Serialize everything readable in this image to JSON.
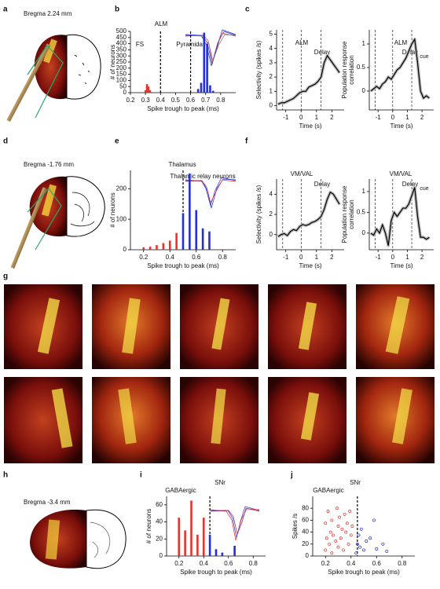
{
  "panels": [
    "a",
    "b",
    "c",
    "d",
    "e",
    "f",
    "g",
    "h",
    "i",
    "j"
  ],
  "captions": [
    "Bregma 2.24 mm",
    "Bregma -1.76 mm",
    "Bregma -3.4 mm"
  ],
  "chart_data": [
    {
      "type": "bar",
      "title": "ALM",
      "annotations": [
        "FS",
        "Pyramidal"
      ],
      "xlabel": "Spike trough to peak (ms)",
      "ylabel": "# of neurons",
      "xlim": [
        0.2,
        0.9
      ],
      "xticks": [
        0.2,
        0.3,
        0.4,
        0.5,
        0.6,
        0.7,
        0.8
      ],
      "ylim": [
        0,
        500
      ],
      "yticks": [
        0,
        50,
        100,
        150,
        200,
        250,
        300,
        350,
        400,
        450,
        500
      ],
      "vlines": [
        0.4,
        0.6
      ],
      "series": [
        {
          "color": "#e8322b",
          "x": [
            0.3,
            0.31,
            0.32,
            0.33,
            0.34
          ],
          "values": [
            20,
            70,
            50,
            20,
            5
          ]
        },
        {
          "color": "#2330d8",
          "x": [
            0.65,
            0.67,
            0.69,
            0.71,
            0.73,
            0.75
          ],
          "values": [
            30,
            80,
            490,
            400,
            60,
            15
          ]
        }
      ]
    },
    {
      "type": "line",
      "title": "ALM",
      "annotations": [
        "Delay"
      ],
      "xlabel": "Time (s)",
      "ylabel": [
        "Selectivity (spikes /s)"
      ],
      "xlim": [
        -1.6,
        2.8
      ],
      "xticks": [
        -1,
        0,
        1,
        2
      ],
      "ylim": [
        -0.3,
        5.3
      ],
      "yticks": [
        0,
        1,
        2,
        3,
        4,
        5
      ],
      "vlines": [
        -1.2,
        0,
        1.3
      ],
      "x": [
        -1.5,
        -1.3,
        -1.1,
        -0.9,
        -0.7,
        -0.5,
        -0.3,
        -0.1,
        0.1,
        0.3,
        0.5,
        0.7,
        0.9,
        1.1,
        1.3,
        1.5,
        1.7,
        1.9,
        2.1,
        2.3,
        2.5
      ],
      "series": [
        {
          "color": "#000000",
          "values": [
            0.1,
            0.2,
            0.2,
            0.3,
            0.4,
            0.5,
            0.7,
            0.9,
            1.0,
            1.0,
            1.3,
            1.4,
            1.5,
            1.7,
            2.0,
            3.0,
            3.5,
            3.2,
            2.9,
            2.6,
            2.3
          ]
        }
      ]
    },
    {
      "type": "line",
      "title": "ALM",
      "annotations": [
        "Delay",
        "cue"
      ],
      "xlabel": "Time (s)",
      "ylabel": [
        "Population response",
        "correlation"
      ],
      "xlim": [
        -1.6,
        2.8
      ],
      "xticks": [
        -1,
        0,
        1,
        2
      ],
      "ylim": [
        -0.4,
        1.3
      ],
      "yticks": [
        0,
        0.5,
        1
      ],
      "vlines": [
        -1.2,
        0,
        1.3
      ],
      "x": [
        -1.5,
        -1.3,
        -1.1,
        -0.9,
        -0.7,
        -0.5,
        -0.3,
        -0.1,
        0.1,
        0.3,
        0.5,
        0.7,
        0.9,
        1.1,
        1.3,
        1.5,
        1.7,
        1.9,
        2.1,
        2.3,
        2.5
      ],
      "series": [
        {
          "color": "#000000",
          "values": [
            0.0,
            0.05,
            0.1,
            0.05,
            0.15,
            0.2,
            0.3,
            0.25,
            0.35,
            0.45,
            0.5,
            0.6,
            0.7,
            0.85,
            1.0,
            1.1,
            0.6,
            0.0,
            -0.15,
            -0.1,
            -0.15
          ]
        }
      ]
    },
    {
      "type": "bar",
      "title": "Thalamus",
      "annotations": [
        "Thalamic relay neurons"
      ],
      "xlabel": "Spike trough to peak (ms)",
      "ylabel": [
        "# of neurons"
      ],
      "xlim": [
        0.1,
        0.9
      ],
      "xticks": [
        0.2,
        0.4,
        0.6,
        0.8
      ],
      "ylim": [
        0,
        260
      ],
      "yticks": [
        0,
        100,
        200
      ],
      "vlines": [
        0.5
      ],
      "series": [
        {
          "color": "#e8322b",
          "x": [
            0.2,
            0.25,
            0.3,
            0.35,
            0.4,
            0.45
          ],
          "values": [
            8,
            10,
            15,
            22,
            30,
            55
          ]
        },
        {
          "color": "#2330d8",
          "x": [
            0.5,
            0.55,
            0.6,
            0.65,
            0.7
          ],
          "values": [
            120,
            250,
            130,
            70,
            60
          ]
        }
      ]
    },
    {
      "type": "line",
      "title": "VM/VAL",
      "annotations": [
        "Delay"
      ],
      "xlabel": "Time (s)",
      "ylabel": [
        "Selectivity (spikes /s)"
      ],
      "xlim": [
        -1.6,
        2.8
      ],
      "xticks": [
        -1,
        0,
        1,
        2
      ],
      "ylim": [
        -1.5,
        5.5
      ],
      "yticks": [
        0,
        2,
        4
      ],
      "vlines": [
        -1.2,
        0,
        1.3
      ],
      "x": [
        -1.5,
        -1.3,
        -1.1,
        -0.9,
        -0.7,
        -0.5,
        -0.3,
        -0.1,
        0.1,
        0.3,
        0.5,
        0.7,
        0.9,
        1.1,
        1.3,
        1.5,
        1.7,
        1.9,
        2.1,
        2.3,
        2.5
      ],
      "series": [
        {
          "color": "#000000",
          "values": [
            -0.2,
            0.0,
            0.1,
            -0.1,
            0.3,
            0.5,
            0.4,
            0.8,
            1.0,
            0.9,
            1.0,
            1.2,
            1.3,
            1.5,
            1.8,
            2.5,
            3.5,
            4.2,
            4.0,
            3.5,
            3.0
          ]
        }
      ]
    },
    {
      "type": "line",
      "title": "VM/VAL",
      "annotations": [
        "Delay",
        "cue"
      ],
      "xlabel": "Time (s)",
      "ylabel": [
        "Population response",
        "correlation"
      ],
      "xlim": [
        -1.6,
        2.8
      ],
      "xticks": [
        -1,
        0,
        1,
        2
      ],
      "ylim": [
        -0.4,
        1.3
      ],
      "yticks": [
        0,
        0.5,
        1
      ],
      "vlines": [
        -1.2,
        0,
        1.3
      ],
      "x": [
        -1.5,
        -1.3,
        -1.1,
        -0.9,
        -0.7,
        -0.5,
        -0.3,
        -0.1,
        0.1,
        0.3,
        0.5,
        0.7,
        0.9,
        1.1,
        1.3,
        1.5,
        1.7,
        1.9,
        2.1,
        2.3,
        2.5
      ],
      "series": [
        {
          "color": "#000000",
          "values": [
            0.0,
            -0.05,
            0.1,
            0.0,
            0.2,
            0.0,
            -0.3,
            0.3,
            0.5,
            0.4,
            0.5,
            0.6,
            0.6,
            0.7,
            0.9,
            1.1,
            0.4,
            -0.1,
            -0.1,
            -0.15,
            -0.1
          ]
        }
      ]
    },
    {
      "type": "bar",
      "title": "SNr",
      "annotations": [
        "GABAergic"
      ],
      "xlabel": "Spike trough to peak (ms)",
      "ylabel": [
        "# of neurons"
      ],
      "xlim": [
        0.1,
        0.9
      ],
      "xticks": [
        0.2,
        0.4,
        0.6,
        0.8
      ],
      "ylim": [
        0,
        70
      ],
      "yticks": [
        0,
        20,
        40,
        60
      ],
      "vlines": [
        0.45
      ],
      "series": [
        {
          "color": "#e8322b",
          "x": [
            0.2,
            0.25,
            0.3,
            0.35,
            0.4
          ],
          "values": [
            45,
            30,
            65,
            25,
            45
          ]
        },
        {
          "color": "#2330d8",
          "x": [
            0.45,
            0.5,
            0.55,
            0.65
          ],
          "values": [
            25,
            8,
            4,
            12
          ]
        }
      ]
    },
    {
      "type": "scatter",
      "title": "SNr",
      "annotations": [
        "GABAergic"
      ],
      "xlabel": "Spike trough to peak (ms)",
      "ylabel": [
        "Spikes /s"
      ],
      "xlim": [
        0.1,
        0.9
      ],
      "xticks": [
        0.2,
        0.4,
        0.6,
        0.8
      ],
      "ylim": [
        0,
        100
      ],
      "yticks": [
        0,
        20,
        40,
        60,
        80
      ],
      "vlines": [
        0.45
      ],
      "series": [
        {
          "color": "#e8322b",
          "x": [
            0.2,
            0.2,
            0.21,
            0.22,
            0.23,
            0.24,
            0.25,
            0.25,
            0.26,
            0.28,
            0.29,
            0.3,
            0.3,
            0.31,
            0.32,
            0.33,
            0.34,
            0.35,
            0.36,
            0.37,
            0.38,
            0.39,
            0.4,
            0.41
          ],
          "values": [
            10,
            55,
            30,
            75,
            20,
            40,
            5,
            60,
            35,
            25,
            80,
            15,
            50,
            65,
            30,
            45,
            10,
            70,
            40,
            55,
            20,
            75,
            35,
            50
          ]
        },
        {
          "color": "#2330d8",
          "x": [
            0.44,
            0.45,
            0.46,
            0.47,
            0.48,
            0.5,
            0.52,
            0.55,
            0.58,
            0.6,
            0.65,
            0.68
          ],
          "values": [
            5,
            20,
            35,
            15,
            45,
            10,
            25,
            30,
            60,
            12,
            20,
            8
          ]
        }
      ]
    }
  ]
}
